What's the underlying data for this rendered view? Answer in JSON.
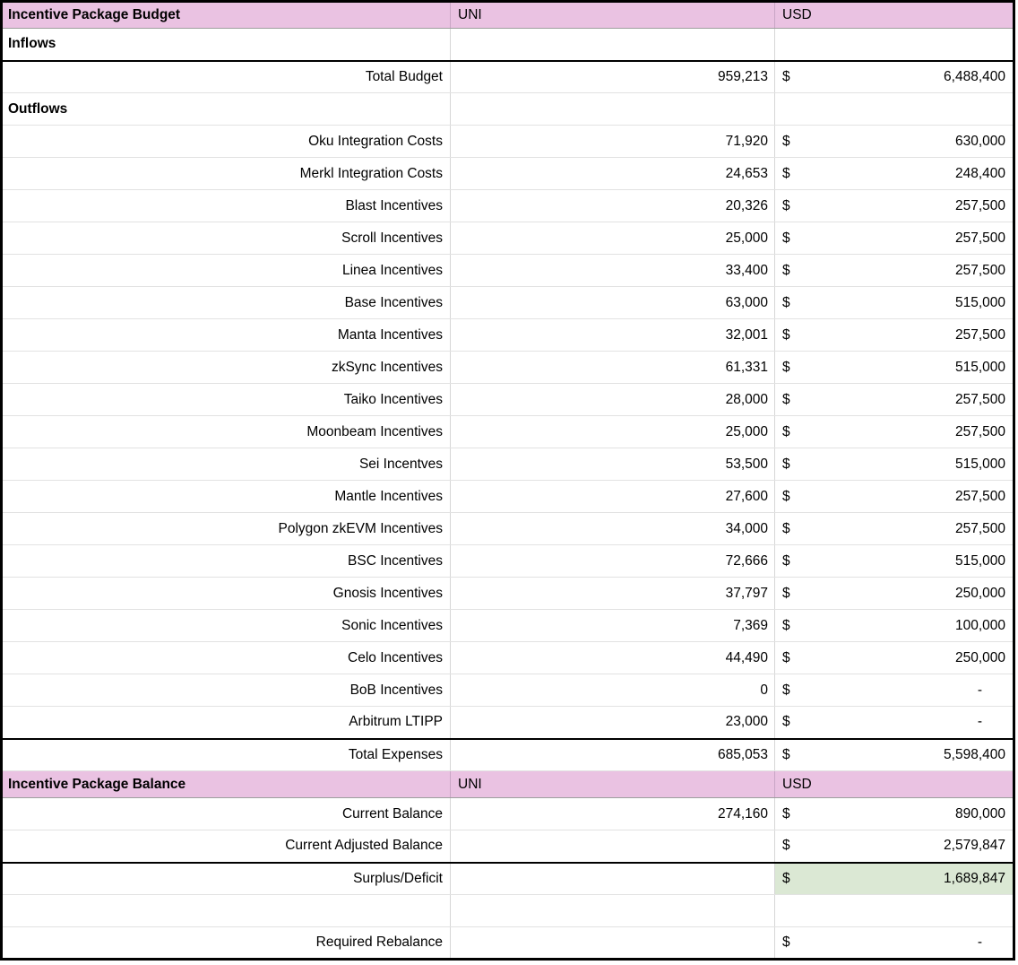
{
  "colors": {
    "header_bg": "#EAC2E2",
    "highlight_bg": "#DBE8D4",
    "grid_line": "#D6D6D6",
    "section_border": "#000000"
  },
  "currency_symbol": "$",
  "budget_header": {
    "title": "Incentive Package Budget",
    "uni_label": "UNI",
    "usd_label": "USD"
  },
  "inflows": {
    "section_label": "Inflows",
    "total_budget": {
      "label": "Total Budget",
      "uni": "959,213",
      "usd": "6,488,400"
    }
  },
  "outflows": {
    "section_label": "Outflows",
    "items": [
      {
        "label": "Oku Integration Costs",
        "uni": "71,920",
        "usd": "630,000"
      },
      {
        "label": "Merkl Integration Costs",
        "uni": "24,653",
        "usd": "248,400"
      },
      {
        "label": "Blast Incentives",
        "uni": "20,326",
        "usd": "257,500"
      },
      {
        "label": "Scroll Incentives",
        "uni": "25,000",
        "usd": "257,500"
      },
      {
        "label": "Linea Incentives",
        "uni": "33,400",
        "usd": "257,500"
      },
      {
        "label": "Base Incentives",
        "uni": "63,000",
        "usd": "515,000"
      },
      {
        "label": "Manta Incentives",
        "uni": "32,001",
        "usd": "257,500"
      },
      {
        "label": "zkSync Incentives",
        "uni": "61,331",
        "usd": "515,000"
      },
      {
        "label": "Taiko Incentives",
        "uni": "28,000",
        "usd": "257,500"
      },
      {
        "label": "Moonbeam Incentives",
        "uni": "25,000",
        "usd": "257,500"
      },
      {
        "label": "Sei Incentves",
        "uni": "53,500",
        "usd": "515,000"
      },
      {
        "label": "Mantle Incentives",
        "uni": "27,600",
        "usd": "257,500"
      },
      {
        "label": "Polygon zkEVM Incentives",
        "uni": "34,000",
        "usd": "257,500"
      },
      {
        "label": "BSC Incentives",
        "uni": "72,666",
        "usd": "515,000"
      },
      {
        "label": "Gnosis Incentives",
        "uni": "37,797",
        "usd": "250,000"
      },
      {
        "label": "Sonic Incentives",
        "uni": "7,369",
        "usd": "100,000"
      },
      {
        "label": "Celo Incentives",
        "uni": "44,490",
        "usd": "250,000"
      },
      {
        "label": "BoB Incentives",
        "uni": "0",
        "usd": "-"
      },
      {
        "label": "Arbitrum LTIPP",
        "uni": "23,000",
        "usd": "-"
      }
    ],
    "total_expenses": {
      "label": "Total Expenses",
      "uni": "685,053",
      "usd": "5,598,400"
    }
  },
  "balance_header": {
    "title": "Incentive Package Balance",
    "uni_label": "UNI",
    "usd_label": "USD"
  },
  "balance": {
    "current_balance": {
      "label": "Current Balance",
      "uni": "274,160",
      "usd": "890,000"
    },
    "current_adjusted_balance": {
      "label": "Current Adjusted Balance",
      "usd": "2,579,847"
    },
    "surplus_deficit": {
      "label": "Surplus/Deficit",
      "usd": "1,689,847"
    },
    "required_rebalance": {
      "label": "Required Rebalance",
      "usd": "-"
    }
  }
}
